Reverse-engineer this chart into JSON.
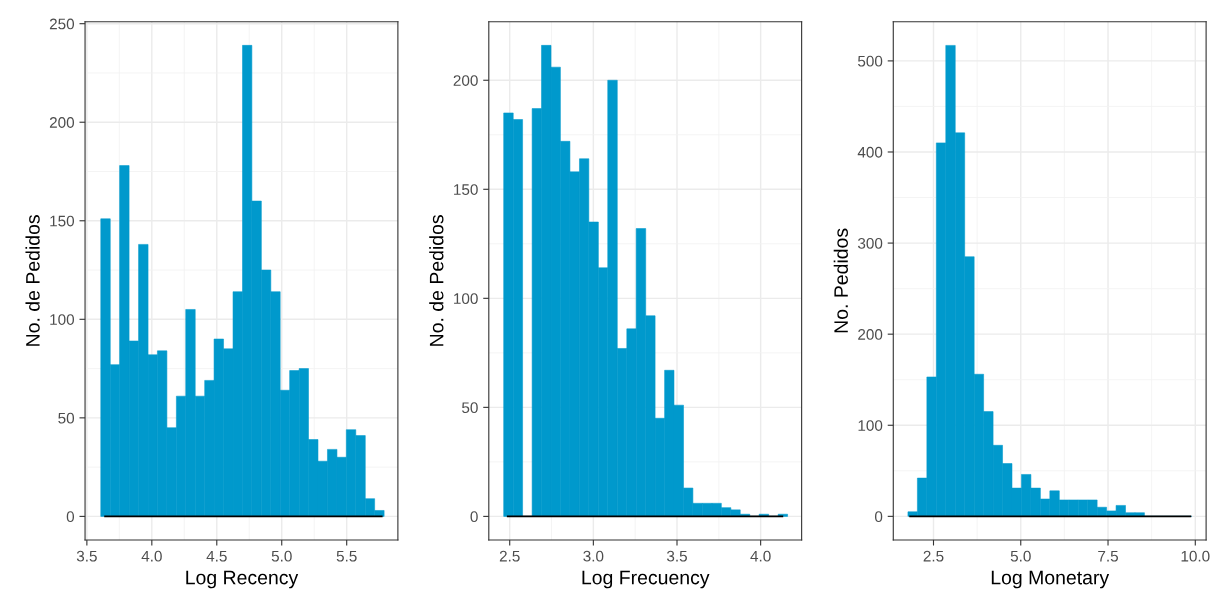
{
  "chart_data": [
    {
      "type": "histogram",
      "xlabel": "Log Recency",
      "ylabel": "No. de Pedidos",
      "color": "#0099cc",
      "bins": [
        3.607,
        3.68,
        3.752,
        3.825,
        3.898,
        3.971,
        4.043,
        4.116,
        4.189,
        4.261,
        4.334,
        4.407,
        4.479,
        4.552,
        4.625,
        4.698,
        4.77,
        4.843,
        4.916,
        4.988,
        5.061,
        5.134,
        5.206,
        5.279,
        5.352,
        5.425,
        5.497,
        5.57,
        5.643,
        5.715,
        5.788
      ],
      "values": [
        151,
        77,
        178,
        89,
        138,
        82,
        84,
        45,
        61,
        105,
        61,
        69,
        90,
        85,
        114,
        239,
        160,
        125,
        114,
        64,
        74,
        75,
        39,
        28,
        34,
        30,
        44,
        41,
        9,
        3
      ],
      "series": [
        {
          "type": "line",
          "color": "#000000",
          "x": [
            3.64,
            5.77
          ],
          "values": [
            0,
            0
          ]
        }
      ],
      "xlim": [
        3.486,
        5.894
      ],
      "ylim": [
        -11.95,
        250.95
      ],
      "xticks": [
        3.5,
        {
          "value": 4,
          "label": "4.0"
        },
        4.5,
        {
          "value": 5,
          "label": "5.0"
        },
        5.5
      ],
      "yticks": [
        0,
        50,
        100,
        150,
        200,
        250
      ],
      "grid": true
    },
    {
      "type": "histogram",
      "xlabel": "Log Frecuency",
      "ylabel": "No. de Pedidos",
      "color": "#0099cc",
      "bins": [
        2.464,
        2.521,
        2.577,
        2.634,
        2.69,
        2.747,
        2.803,
        2.86,
        2.917,
        2.973,
        3.03,
        3.086,
        3.143,
        3.2,
        3.256,
        3.313,
        3.369,
        3.426,
        3.482,
        3.539,
        3.595,
        3.652,
        3.709,
        3.765,
        3.822,
        3.878,
        3.935,
        3.991,
        4.048,
        4.105,
        4.161
      ],
      "values": [
        185,
        182,
        0,
        187,
        216,
        206,
        172,
        158,
        164,
        135,
        114,
        200,
        77,
        86,
        132,
        92,
        45,
        67,
        51,
        13,
        6,
        6,
        6,
        4,
        3,
        1,
        0,
        1,
        0,
        1
      ],
      "series": [
        {
          "type": "line",
          "color": "#000000",
          "x": [
            2.488,
            4.13
          ],
          "values": [
            0,
            0
          ]
        }
      ],
      "xlim": [
        2.375,
        4.245
      ],
      "ylim": [
        -10.8,
        226.8
      ],
      "xticks": [
        2.5,
        {
          "value": 3,
          "label": "3.0"
        },
        3.5,
        {
          "value": 4,
          "label": "4.0"
        }
      ],
      "yticks": [
        0,
        50,
        100,
        150,
        200
      ],
      "grid": true
    },
    {
      "type": "histogram",
      "xlabel": "Log Monetary",
      "ylabel": "No. Pedidos",
      "color": "#0099cc",
      "bins": [
        1.768,
        2.039,
        2.31,
        2.581,
        2.852,
        3.123,
        3.394,
        3.665,
        3.936,
        4.207,
        4.478,
        4.749,
        5.02,
        5.291,
        5.562,
        5.833,
        6.104,
        6.375,
        6.646,
        6.917,
        7.188,
        7.459,
        7.73,
        8.001,
        8.272,
        8.543,
        8.814,
        9.085,
        9.356,
        9.627,
        9.898
      ],
      "values": [
        5,
        42,
        153,
        410,
        517,
        421,
        285,
        156,
        115,
        78,
        58,
        31,
        46,
        31,
        19,
        28,
        18,
        18,
        18,
        18,
        10,
        6,
        12,
        4,
        4,
        0,
        0,
        0,
        0,
        0
      ],
      "series": [
        {
          "type": "line",
          "color": "#000000",
          "x": [
            1.83,
            9.86
          ],
          "values": [
            0,
            0
          ]
        }
      ],
      "xlim": [
        1.348,
        10.31
      ],
      "ylim": [
        -25.9,
        542.9
      ],
      "xticks": [
        2.5,
        {
          "value": 5,
          "label": "5.0"
        },
        7.5,
        {
          "value": 10,
          "label": "10.0"
        }
      ],
      "yticks": [
        0,
        100,
        200,
        300,
        400,
        500
      ],
      "grid": true
    }
  ]
}
